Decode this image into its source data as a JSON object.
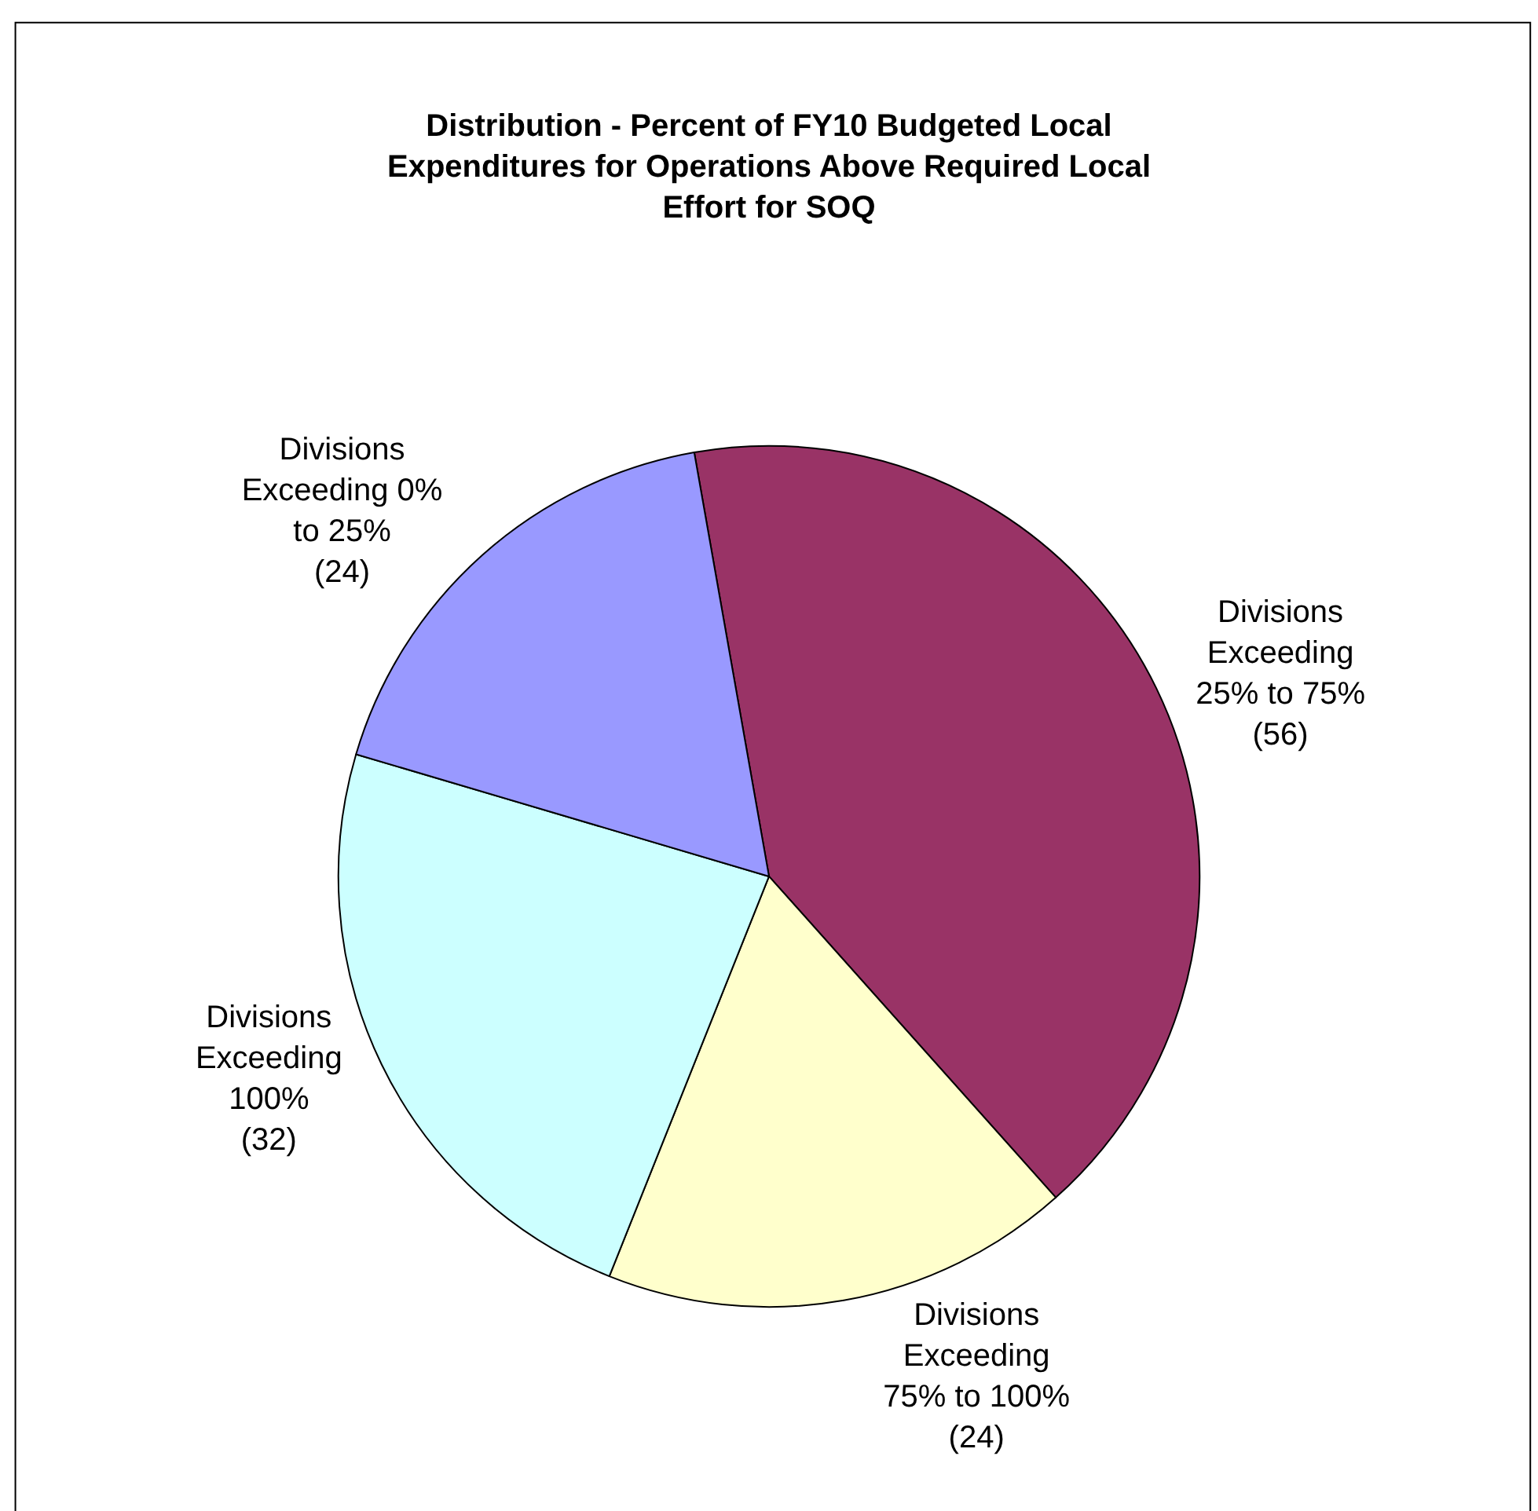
{
  "chart_data": {
    "type": "pie",
    "title": "Distribution - Percent of FY10 Budgeted Local Expenditures for Operations Above Required Local Effort for SOQ",
    "categories": [
      "Divisions Exceeding 25% to 75%",
      "Divisions Exceeding 75% to 100%",
      "Divisions Exceeding 100%",
      "Divisions Exceeding 0% to 25%"
    ],
    "values": [
      56,
      24,
      32,
      24
    ],
    "value_labels": [
      "(56)",
      "(24)",
      "(32)",
      "(24)"
    ],
    "colors": [
      "#993366",
      "#ffffcc",
      "#ccffff",
      "#9999ff"
    ],
    "legend": false
  }
}
